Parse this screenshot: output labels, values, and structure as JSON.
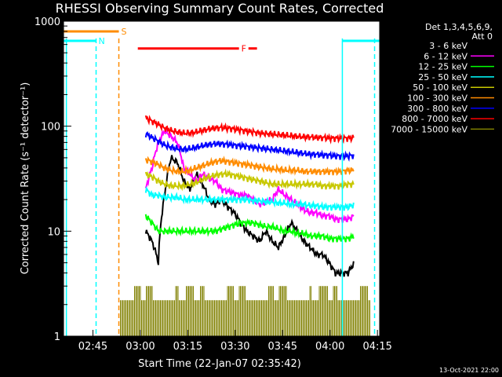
{
  "chart_data": {
    "type": "line",
    "title": "RHESSI Observing Summary Count Rates, Corrected",
    "xlabel": "Start Time (22-Jan-07 02:35:42)",
    "ylabel": "Corrected Count Rate (s⁻¹ detector⁻¹)",
    "y_scale": "log",
    "ylim": [
      1,
      1000
    ],
    "y_ticks": [
      {
        "value": 1,
        "label": "1"
      },
      {
        "value": 10,
        "label": "10"
      },
      {
        "value": 100,
        "label": "100"
      },
      {
        "value": 1000,
        "label": "1000"
      }
    ],
    "xlim_minutes": [
      0,
      100
    ],
    "x_ticks": [
      {
        "minute": 9.3,
        "label": "02:45"
      },
      {
        "minute": 24.3,
        "label": "03:00"
      },
      {
        "minute": 39.3,
        "label": "03:15"
      },
      {
        "minute": 54.3,
        "label": "03:30"
      },
      {
        "minute": 69.3,
        "label": "03:45"
      },
      {
        "minute": 84.3,
        "label": "04:00"
      },
      {
        "minute": 99.3,
        "label": "04:15"
      }
    ],
    "legend": {
      "header": [
        "Det 1,3,4,5,6,9,",
        "Att 0"
      ],
      "placement": "right",
      "entries": [
        {
          "label": "3 - 6 keV",
          "color": "#000000"
        },
        {
          "label": "6 - 12 keV",
          "color": "#ff00ff"
        },
        {
          "label": "12 - 25 keV",
          "color": "#00ff00"
        },
        {
          "label": "25 - 50 keV",
          "color": "#00ffff"
        },
        {
          "label": "50 - 100 keV",
          "color": "#c8c800"
        },
        {
          "label": "100 - 300 keV",
          "color": "#ff8c00"
        },
        {
          "label": "300 - 800 keV",
          "color": "#0000ff"
        },
        {
          "label": "800 - 7000 keV",
          "color": "#ff0000"
        },
        {
          "label": "7000 - 15000 keV",
          "color": "#808000"
        }
      ]
    },
    "series": [
      {
        "name": "3 - 6 keV",
        "color": "#000000",
        "x": [
          26,
          28,
          30,
          32,
          34,
          36,
          38,
          40,
          42,
          44,
          46,
          48,
          50,
          52,
          54,
          56,
          58,
          60,
          62,
          64,
          66,
          68,
          70,
          72,
          74,
          76,
          78,
          80,
          82,
          84,
          86,
          88,
          90,
          92
        ],
        "y": [
          10,
          8,
          5,
          22,
          50,
          45,
          30,
          25,
          35,
          28,
          20,
          18,
          20,
          17,
          15,
          12,
          10,
          9,
          8,
          10,
          8,
          7,
          9,
          12,
          10,
          8,
          7,
          6,
          6,
          5,
          4,
          4,
          4,
          5
        ]
      },
      {
        "name": "6 - 12 keV",
        "color": "#ff00ff",
        "x": [
          26,
          28,
          30,
          32,
          34,
          36,
          38,
          40,
          42,
          44,
          46,
          48,
          50,
          52,
          54,
          56,
          58,
          60,
          62,
          64,
          66,
          68,
          70,
          72,
          74,
          76,
          78,
          80,
          82,
          84,
          86,
          88,
          90,
          92
        ],
        "y": [
          25,
          40,
          70,
          90,
          80,
          70,
          40,
          35,
          30,
          35,
          32,
          30,
          25,
          24,
          23,
          22,
          22,
          20,
          18,
          19,
          20,
          25,
          22,
          20,
          18,
          16,
          15,
          15,
          14,
          14,
          13,
          13,
          13,
          14
        ]
      },
      {
        "name": "12 - 25 keV",
        "color": "#00ff00",
        "x": [
          26,
          28,
          30,
          32,
          34,
          36,
          38,
          40,
          42,
          44,
          46,
          48,
          50,
          52,
          54,
          56,
          58,
          60,
          62,
          64,
          66,
          68,
          70,
          72,
          74,
          76,
          78,
          80,
          82,
          84,
          86,
          88,
          90,
          92
        ],
        "y": [
          14,
          12,
          10,
          10,
          10,
          10,
          10,
          10,
          10,
          10,
          10,
          10,
          10.5,
          11,
          11.5,
          12,
          12,
          12,
          11.5,
          11,
          11,
          10.5,
          10,
          10,
          9.5,
          9.5,
          9,
          9,
          9,
          8.5,
          8.5,
          8.5,
          8.5,
          9
        ]
      },
      {
        "name": "25 - 50 keV",
        "color": "#00ffff",
        "x": [
          26,
          28,
          30,
          32,
          34,
          36,
          38,
          40,
          42,
          44,
          46,
          48,
          50,
          52,
          54,
          56,
          58,
          60,
          62,
          64,
          66,
          68,
          70,
          72,
          74,
          76,
          78,
          80,
          82,
          84,
          86,
          88,
          90,
          92
        ],
        "y": [
          25,
          22,
          22,
          21,
          21,
          21,
          20,
          20,
          20,
          20,
          20,
          20,
          20,
          20,
          20,
          20,
          20,
          19.5,
          19.5,
          19,
          19,
          18.5,
          18.5,
          18,
          18,
          18,
          17.5,
          17.5,
          17,
          17,
          17,
          17,
          17,
          18
        ]
      },
      {
        "name": "50 - 100 keV",
        "color": "#c8c800",
        "x": [
          26,
          28,
          30,
          32,
          34,
          36,
          38,
          40,
          42,
          44,
          46,
          48,
          50,
          52,
          54,
          56,
          58,
          60,
          62,
          64,
          66,
          68,
          70,
          72,
          74,
          76,
          78,
          80,
          82,
          84,
          86,
          88,
          90,
          92
        ],
        "y": [
          35,
          33,
          30,
          28,
          27,
          27,
          27,
          28,
          29,
          31,
          33,
          34,
          35,
          35,
          34,
          33,
          32,
          31,
          30,
          29,
          28,
          28,
          28,
          28,
          28,
          28,
          28,
          28,
          27,
          27,
          27,
          27,
          28,
          28
        ]
      },
      {
        "name": "100 - 300 keV",
        "color": "#ff8c00",
        "x": [
          26,
          28,
          30,
          32,
          34,
          36,
          38,
          40,
          42,
          44,
          46,
          48,
          50,
          52,
          54,
          56,
          58,
          60,
          62,
          64,
          66,
          68,
          70,
          72,
          74,
          76,
          78,
          80,
          82,
          84,
          86,
          88,
          90,
          92
        ],
        "y": [
          48,
          46,
          43,
          40,
          38,
          37,
          37,
          38,
          40,
          42,
          44,
          46,
          47,
          46,
          45,
          44,
          43,
          42,
          41,
          40,
          39,
          39,
          38,
          38,
          38,
          37,
          37,
          37,
          37,
          37,
          37,
          37,
          38,
          38
        ]
      },
      {
        "name": "300 - 800 keV",
        "color": "#0000ff",
        "x": [
          26,
          28,
          30,
          32,
          34,
          36,
          38,
          40,
          42,
          44,
          46,
          48,
          50,
          52,
          54,
          56,
          58,
          60,
          62,
          64,
          66,
          68,
          70,
          72,
          74,
          76,
          78,
          80,
          82,
          84,
          86,
          88,
          90,
          92
        ],
        "y": [
          85,
          78,
          72,
          66,
          63,
          61,
          60,
          61,
          63,
          65,
          67,
          68,
          68,
          67,
          66,
          65,
          64,
          63,
          62,
          61,
          60,
          59,
          58,
          57,
          56,
          55,
          54,
          54,
          53,
          53,
          52,
          52,
          52,
          53
        ]
      },
      {
        "name": "800 - 7000 keV",
        "color": "#ff0000",
        "x": [
          26,
          28,
          30,
          32,
          34,
          36,
          38,
          40,
          42,
          44,
          46,
          48,
          50,
          52,
          54,
          56,
          58,
          60,
          62,
          64,
          66,
          68,
          70,
          72,
          74,
          76,
          78,
          80,
          82,
          84,
          86,
          88,
          90,
          92
        ],
        "y": [
          120,
          112,
          104,
          96,
          91,
          88,
          86,
          86,
          88,
          91,
          94,
          96,
          97,
          96,
          94,
          92,
          90,
          88,
          86,
          85,
          84,
          83,
          82,
          81,
          80,
          79,
          79,
          78,
          78,
          77,
          77,
          77,
          77,
          78
        ]
      }
    ],
    "annotations": [
      {
        "label": "N",
        "color": "#00ffff",
        "x_range": [
          0,
          10.3
        ],
        "y": 650
      },
      {
        "label": "S",
        "color": "#ff8c00",
        "x_range": [
          0,
          17.5
        ],
        "y": 800
      },
      {
        "label": "F",
        "color": "#ff0000",
        "x_range": [
          23.5,
          55.5
        ],
        "y": 550
      },
      {
        "label": "",
        "color": "#ff0000",
        "x_range": [
          58.5,
          61.2
        ],
        "y": 550
      },
      {
        "label": "",
        "color": "#00ffff",
        "x_range": [
          88.2,
          100
        ],
        "y": 650
      }
    ],
    "vertical_markers": [
      {
        "x": 10.3,
        "color": "#00ffff",
        "style": "dashed"
      },
      {
        "x": 17.5,
        "color": "#ff8c00",
        "style": "dashed"
      },
      {
        "x": 98.4,
        "color": "#00ffff",
        "style": "dashed"
      },
      {
        "x": 88.2,
        "color": "#00ffff",
        "style": "solid"
      },
      {
        "x": 0.9,
        "color": "#00ffff",
        "style": "solid"
      }
    ],
    "attenuator_band": {
      "color": "#808000",
      "x_range": [
        18,
        97
      ],
      "y_range": [
        1,
        3
      ]
    }
  },
  "footer": {
    "timestamp": "13-Oct-2021 22:00"
  }
}
